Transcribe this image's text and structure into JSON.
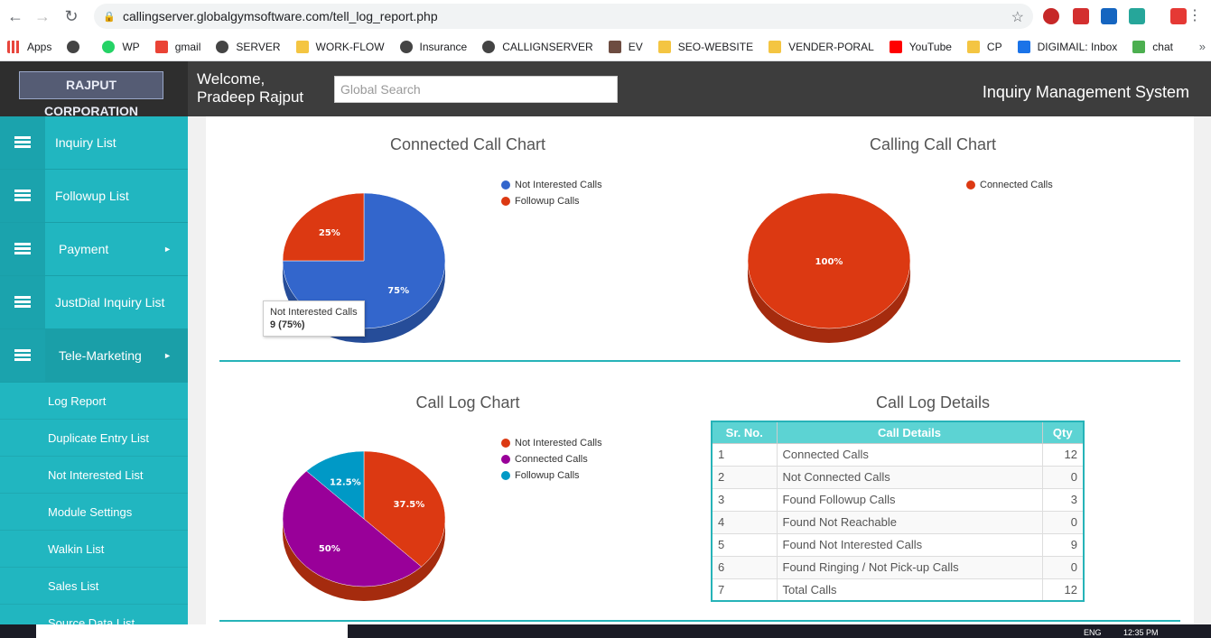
{
  "browser": {
    "url": "callingserver.globalgymsoftware.com/tell_log_report.php",
    "bookmarks": [
      "Apps",
      "WP",
      "gmail",
      "SERVER",
      "WORK-FLOW",
      "Insurance",
      "CALLIGNSERVER",
      "EV",
      "SEO-WEBSITE",
      "VENDER-PORAL",
      "YouTube",
      "CP",
      "DIGIMAIL: Inbox",
      "chat"
    ]
  },
  "header": {
    "logo": "RAJPUT CORPORATION",
    "welcome_line1": "Welcome,",
    "welcome_line2": "Pradeep Rajput",
    "search_placeholder": "Global Search",
    "system_title": "Inquiry Management System"
  },
  "sidebar": {
    "items": [
      {
        "label": "Inquiry List"
      },
      {
        "label": "Followup List"
      },
      {
        "label": "Payment"
      },
      {
        "label": "JustDial Inquiry List"
      },
      {
        "label": "Tele-Marketing"
      }
    ],
    "sub_items": [
      "Log Report",
      "Duplicate Entry List",
      "Not Interested List",
      "Module Settings",
      "Walkin List",
      "Sales List",
      "Source Data List"
    ]
  },
  "charts": {
    "connected": {
      "title": "Connected Call Chart"
    },
    "calling": {
      "title": "Calling Call Chart"
    },
    "log": {
      "title": "Call Log Chart"
    },
    "details_title": "Call Log Details"
  },
  "tooltip": {
    "line1": "Not Interested Calls",
    "line2": "9 (75%)"
  },
  "chart_data": [
    {
      "type": "pie",
      "title": "Connected Call Chart",
      "categories": [
        "Not Interested Calls",
        "Followup Calls"
      ],
      "values": [
        75,
        25
      ],
      "labels": [
        "75%",
        "25%"
      ],
      "colors": [
        "#3366cc",
        "#dc3912"
      ],
      "legend": "top-right"
    },
    {
      "type": "pie",
      "title": "Calling Call Chart",
      "categories": [
        "Connected Calls"
      ],
      "values": [
        100
      ],
      "labels": [
        "100%"
      ],
      "colors": [
        "#dc3912"
      ],
      "legend": "top-right"
    },
    {
      "type": "pie",
      "title": "Call Log Chart",
      "categories": [
        "Not Interested Calls",
        "Connected Calls",
        "Followup Calls"
      ],
      "values": [
        37.5,
        50,
        12.5
      ],
      "labels": [
        "37.5%",
        "50%",
        "12.5%"
      ],
      "colors": [
        "#dc3912",
        "#990099",
        "#0099c6"
      ],
      "legend": "top-right"
    },
    {
      "type": "table",
      "title": "Call Log Details",
      "columns": [
        "Sr. No.",
        "Call Details",
        "Qty"
      ],
      "rows": [
        [
          "1",
          "Connected Calls",
          "12"
        ],
        [
          "2",
          "Not Connected Calls",
          "0"
        ],
        [
          "3",
          "Found Followup Calls",
          "3"
        ],
        [
          "4",
          "Found Not Reachable",
          "0"
        ],
        [
          "5",
          "Found Not Interested Calls",
          "9"
        ],
        [
          "6",
          "Found Ringing / Not Pick-up Calls",
          "0"
        ],
        [
          "7",
          "Total Calls",
          "12"
        ]
      ]
    }
  ],
  "taskbar": {
    "lang": "ENG",
    "time": "12:35 PM"
  }
}
